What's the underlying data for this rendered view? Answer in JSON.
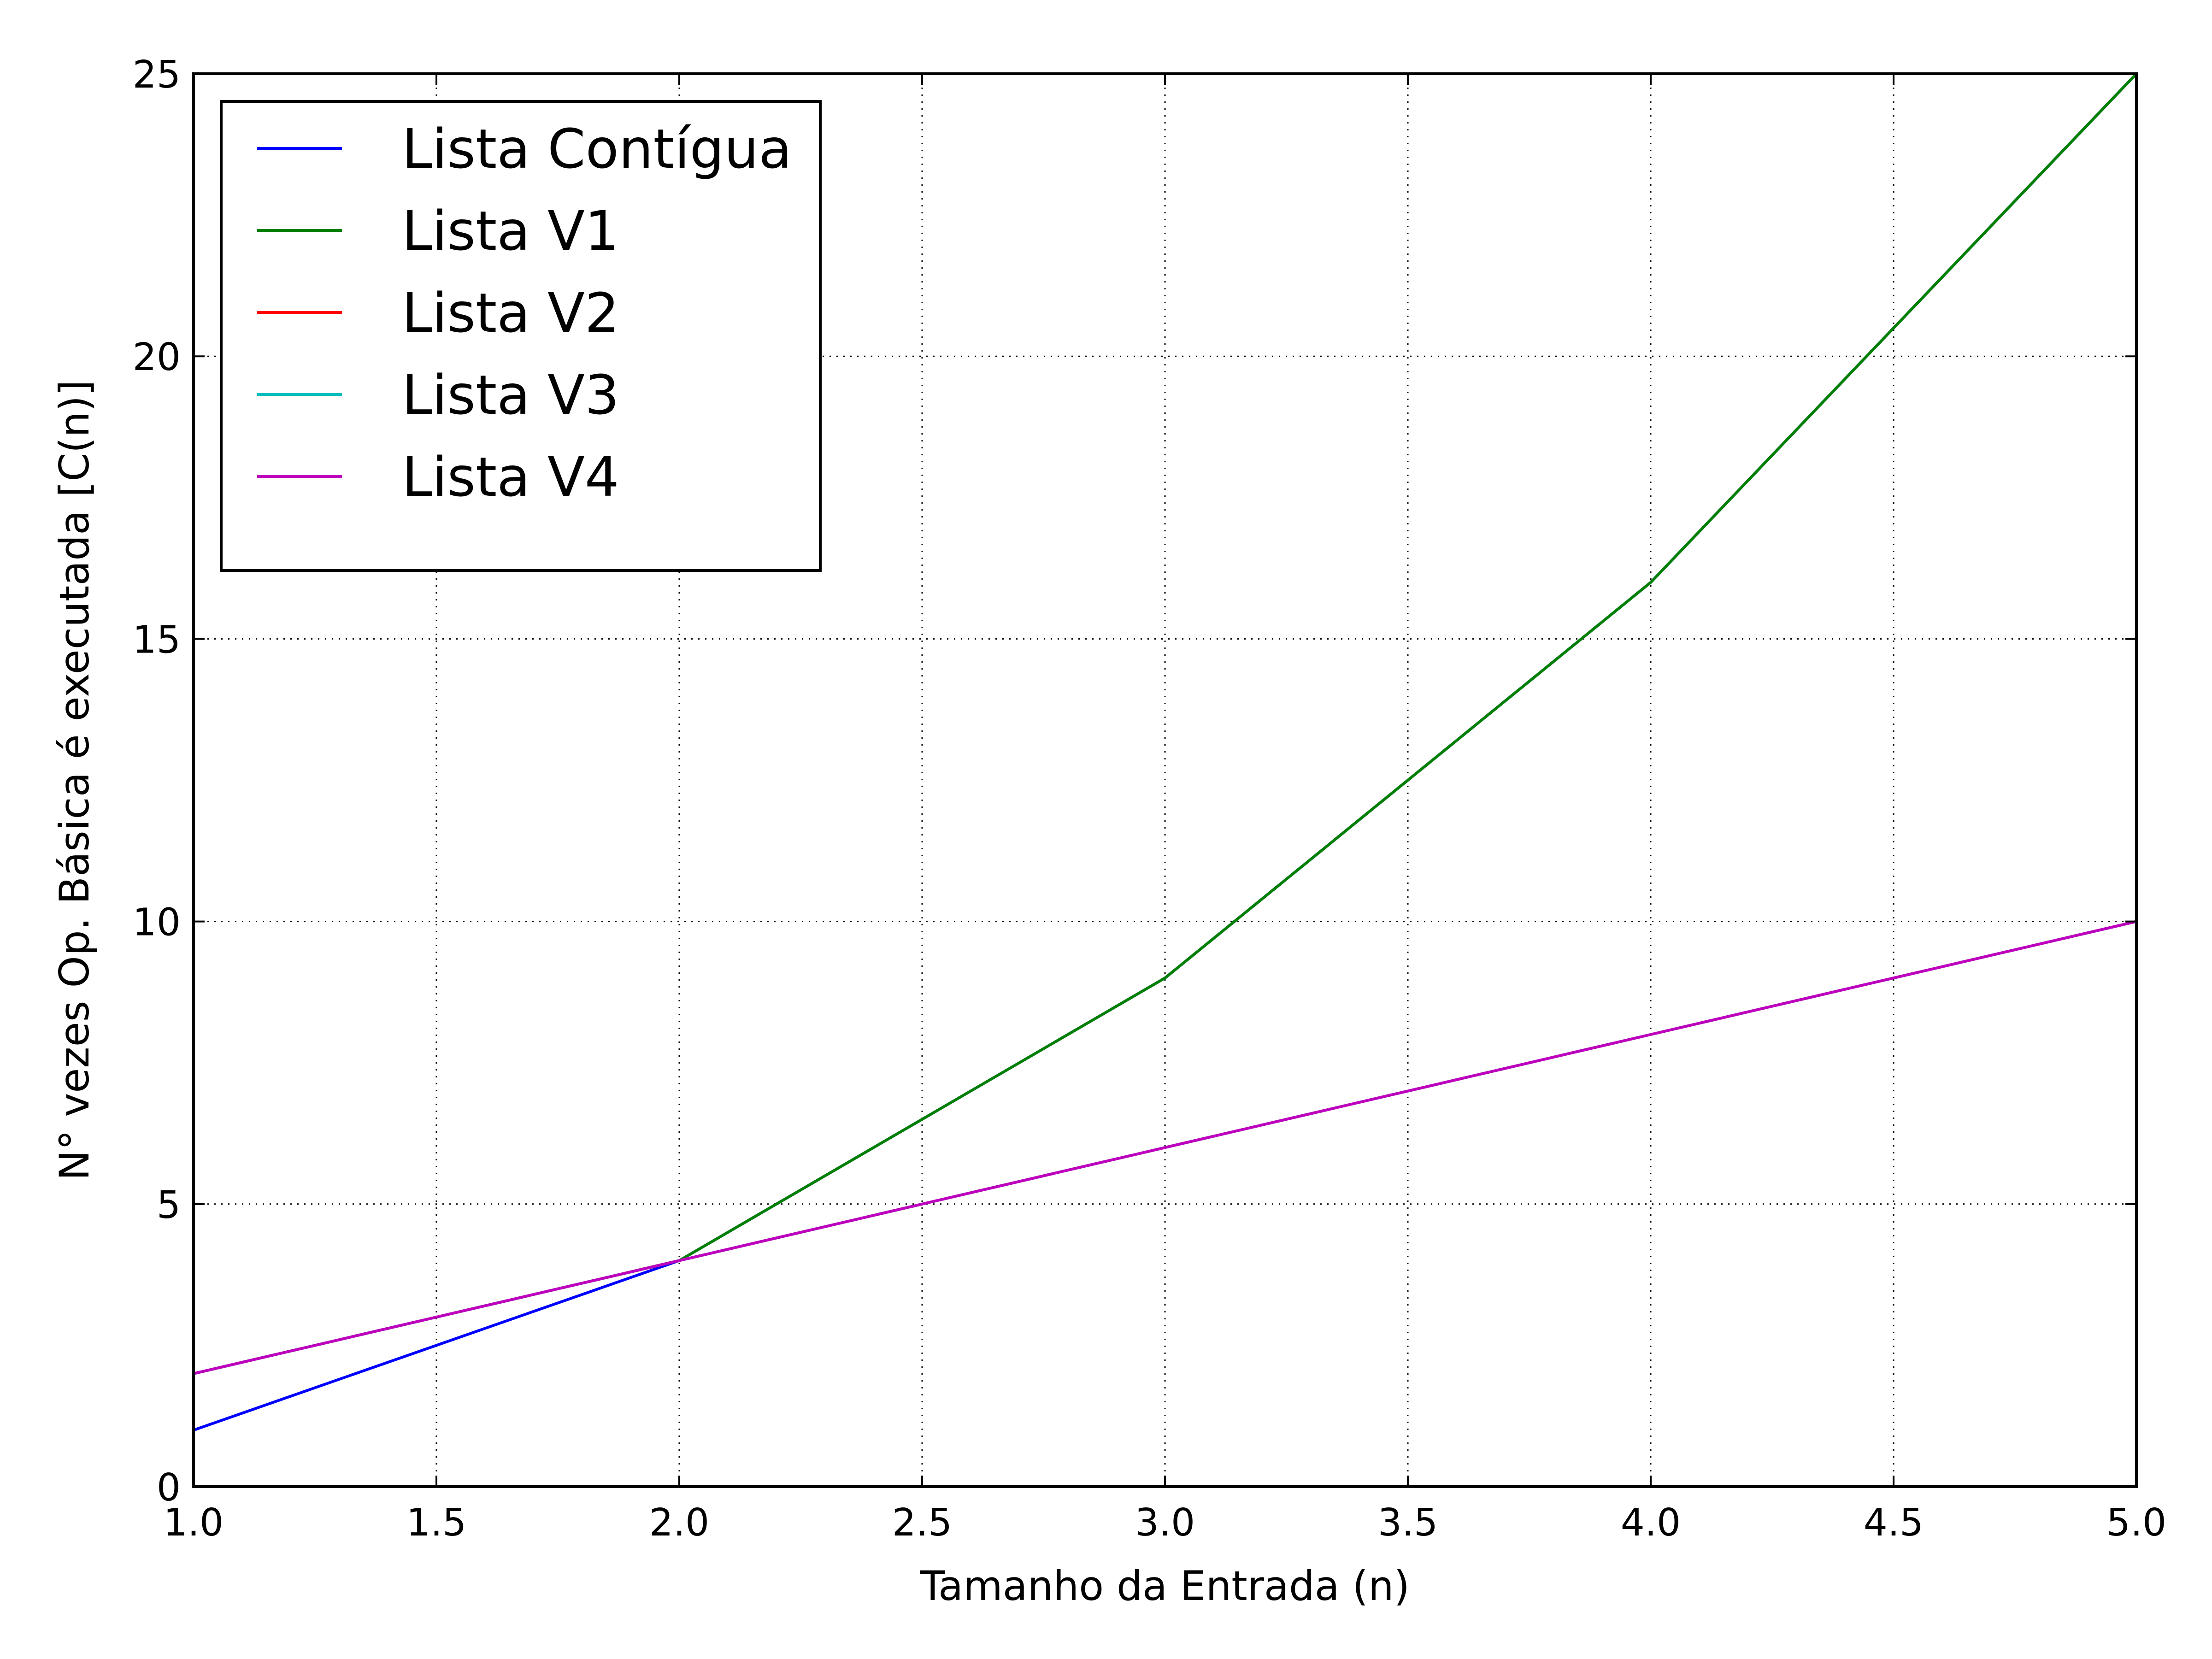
{
  "chart_data": {
    "type": "line",
    "title": "",
    "xlabel": "Tamanho da Entrada (n)",
    "ylabel": "N° vezes Op. Básica é executada [C(n)]",
    "xlim": [
      1.0,
      5.0
    ],
    "ylim": [
      0,
      25
    ],
    "x_ticks": [
      "1.0",
      "1.5",
      "2.0",
      "2.5",
      "3.0",
      "3.5",
      "4.0",
      "4.5",
      "5.0"
    ],
    "y_ticks": [
      "0",
      "5",
      "10",
      "15",
      "20",
      "25"
    ],
    "grid": true,
    "grid_style": "dotted",
    "legend_position": "top-left",
    "series": [
      {
        "name": "Lista Contígua",
        "color": "#0000ff",
        "x": [
          1,
          2,
          3,
          4,
          5
        ],
        "y": [
          1,
          4,
          9,
          16,
          25
        ]
      },
      {
        "name": "Lista V1",
        "color": "#008000",
        "x": [
          1,
          2,
          3,
          4,
          5
        ],
        "y": [
          2,
          4,
          9,
          16,
          25
        ]
      },
      {
        "name": "Lista V2",
        "color": "#ff0000",
        "x": [
          1,
          2,
          3,
          4,
          5
        ],
        "y": [
          2,
          4,
          6,
          8,
          10
        ]
      },
      {
        "name": "Lista V3",
        "color": "#00bfbf",
        "x": [
          1,
          2,
          3,
          4,
          5
        ],
        "y": [
          2,
          4,
          6,
          8,
          10
        ]
      },
      {
        "name": "Lista V4",
        "color": "#bf00bf",
        "x": [
          1,
          2,
          3,
          4,
          5
        ],
        "y": [
          2,
          4,
          6,
          8,
          10
        ]
      }
    ]
  }
}
